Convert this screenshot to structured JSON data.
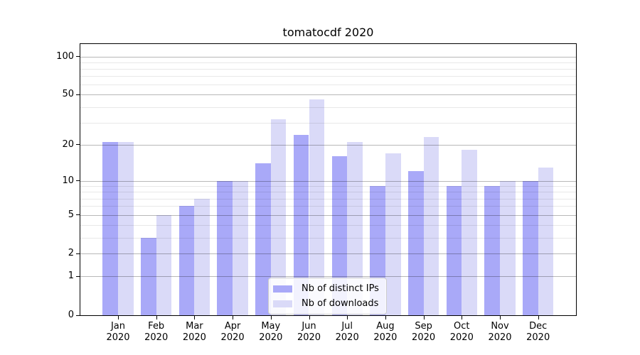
{
  "colors": {
    "ips_bar": "#a9a9f8",
    "downloads_bar": "#dadaf8",
    "major_grid": "rgba(0,0,0,0.28)",
    "minor_grid": "rgba(0,0,0,0.09)",
    "axis_line": "#000000",
    "legend_border": "#cccccc"
  },
  "y_axis": {
    "tick_labels": [
      "100",
      "50",
      "20",
      "10",
      "5",
      "2",
      "1",
      "0"
    ],
    "tick_values": [
      100,
      50,
      20,
      10,
      5,
      2,
      1,
      0
    ],
    "minor_grid_values": [
      3,
      4,
      6,
      7,
      8,
      9,
      30,
      40,
      60,
      70,
      80,
      90
    ]
  },
  "chart_data": {
    "type": "bar",
    "title": "tomatocdf 2020",
    "categories": [
      "Jan 2020",
      "Feb 2020",
      "Mar 2020",
      "Apr 2020",
      "May 2020",
      "Jun 2020",
      "Jul 2020",
      "Aug 2020",
      "Sep 2020",
      "Oct 2020",
      "Nov 2020",
      "Dec 2020"
    ],
    "series": [
      {
        "name": "Nb of distinct IPs",
        "color": "#a9a9f8",
        "values": [
          21,
          3,
          6,
          10,
          14,
          24,
          16,
          9,
          12,
          9,
          9,
          10
        ]
      },
      {
        "name": "Nb of downloads",
        "color": "#dadaf8",
        "values": [
          21,
          5,
          7,
          10,
          32,
          46,
          21,
          17,
          23,
          18,
          10,
          13
        ]
      }
    ],
    "xlabel": "",
    "ylabel": "",
    "y_scale": "log1p",
    "y_ticks": [
      0,
      1,
      2,
      5,
      10,
      20,
      50,
      100
    ],
    "ylim": [
      0,
      125
    ],
    "grid": true,
    "legend_position": "lower center"
  }
}
